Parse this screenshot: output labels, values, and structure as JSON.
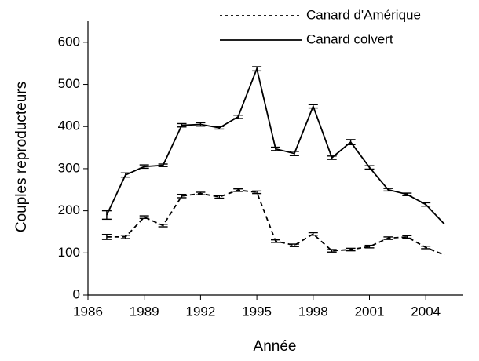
{
  "chart_data": {
    "type": "line",
    "xlabel": "Année",
    "ylabel": "Couples reproducteurs",
    "x": [
      1987,
      1988,
      1989,
      1990,
      1991,
      1992,
      1993,
      1994,
      1995,
      1996,
      1997,
      1998,
      1999,
      2000,
      2001,
      2002,
      2003,
      2004,
      2005
    ],
    "series": [
      {
        "name": "Canard d'Amérique",
        "color": "#000000",
        "dash": true,
        "values": [
          138,
          138,
          185,
          165,
          235,
          241,
          233,
          249,
          244,
          128,
          118,
          145,
          105,
          108,
          115,
          135,
          138,
          113,
          95
        ],
        "errors": [
          6,
          4,
          3,
          3,
          4,
          3,
          3,
          3,
          3,
          3,
          3,
          3,
          3,
          3,
          3,
          3,
          3,
          3,
          null
        ]
      },
      {
        "name": "Canard colvert",
        "color": "#000000",
        "dash": false,
        "values": [
          190,
          285,
          305,
          308,
          403,
          405,
          397,
          423,
          537,
          347,
          336,
          448,
          326,
          363,
          303,
          250,
          239,
          215,
          168
        ],
        "errors": [
          10,
          5,
          4,
          3,
          4,
          4,
          3,
          4,
          5,
          4,
          5,
          4,
          4,
          6,
          4,
          3,
          3,
          4,
          null
        ]
      }
    ],
    "xlim": [
      1986,
      2006
    ],
    "xticks": [
      1986,
      1989,
      1992,
      1995,
      1998,
      2001,
      2004
    ],
    "ylim": [
      0,
      650
    ],
    "yticks": [
      0,
      100,
      200,
      300,
      400,
      500,
      600
    ],
    "grid": false,
    "legend": "top-right"
  }
}
